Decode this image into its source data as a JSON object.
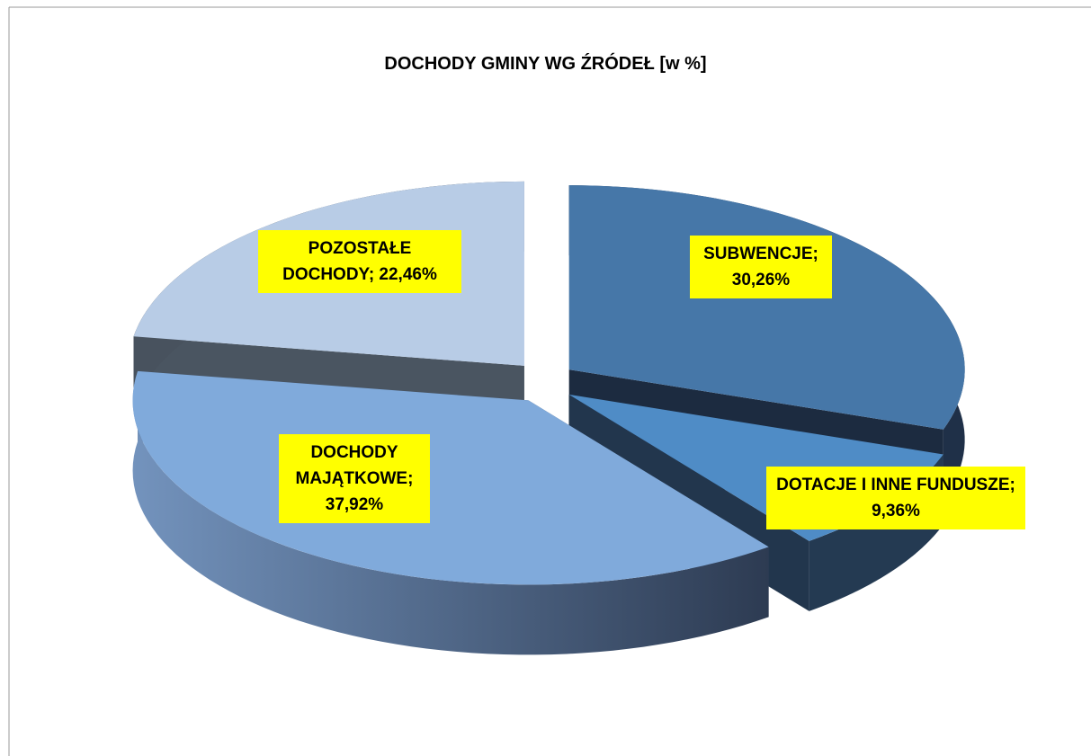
{
  "chart_data": {
    "type": "pie3d",
    "title": "DOCHODY GMINY WG ŹRÓDEŁ [w %]",
    "values": [
      30.26,
      9.36,
      37.92,
      22.46
    ],
    "value_labels": [
      "SUBWENCJE; 30,26%",
      "DOTACJE I INNE FUNDUSZE; 9,36%",
      "DOCHODY MAJĄTKOWE; 37,92%",
      "POZOSTAŁE DOCHODY; 22,46%"
    ],
    "colors": [
      "#4677a8",
      "#4f8cc6",
      "#80aadb",
      "#b8cce6"
    ]
  }
}
